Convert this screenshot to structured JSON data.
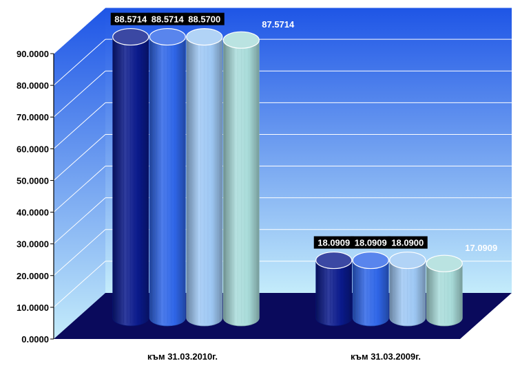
{
  "chart_data": {
    "type": "bar",
    "style": "3d-cylinder",
    "categories": [
      "към 31.03.2010г.",
      "към 31.03.2009г."
    ],
    "series": [
      {
        "values": [
          88.5714,
          18.0909
        ],
        "labels": [
          "88.5714",
          "18.0909"
        ],
        "label_style": "boxed",
        "color": "#0a1a8c"
      },
      {
        "values": [
          88.5714,
          18.0909
        ],
        "labels": [
          "88.5714",
          "18.0909"
        ],
        "label_style": "boxed",
        "color": "#2f66e8"
      },
      {
        "values": [
          88.57,
          18.09
        ],
        "labels": [
          "88.5700",
          "18.0900"
        ],
        "label_style": "boxed",
        "color": "#9ec8f4"
      },
      {
        "values": [
          87.5714,
          17.0909
        ],
        "labels": [
          "87.5714",
          "17.0909"
        ],
        "label_style": "plain",
        "color": "#a9dcda"
      }
    ],
    "ylim": [
      0,
      90
    ],
    "ytick_values": [
      0,
      10,
      20,
      30,
      40,
      50,
      60,
      70,
      80,
      90
    ],
    "ytick_labels": [
      "0.0000",
      "10.0000",
      "20.0000",
      "30.0000",
      "40.0000",
      "50.0000",
      "60.0000",
      "70.0000",
      "80.0000",
      "90.0000"
    ],
    "grid": true,
    "legend": "none",
    "colors": {
      "wall_top": "#1e55e6",
      "wall_bottom": "#c4ecfb",
      "floor": "#0a0a5c",
      "gridline": "#ffffff",
      "label_box": "#000000",
      "label_text": "#ffffff"
    }
  }
}
